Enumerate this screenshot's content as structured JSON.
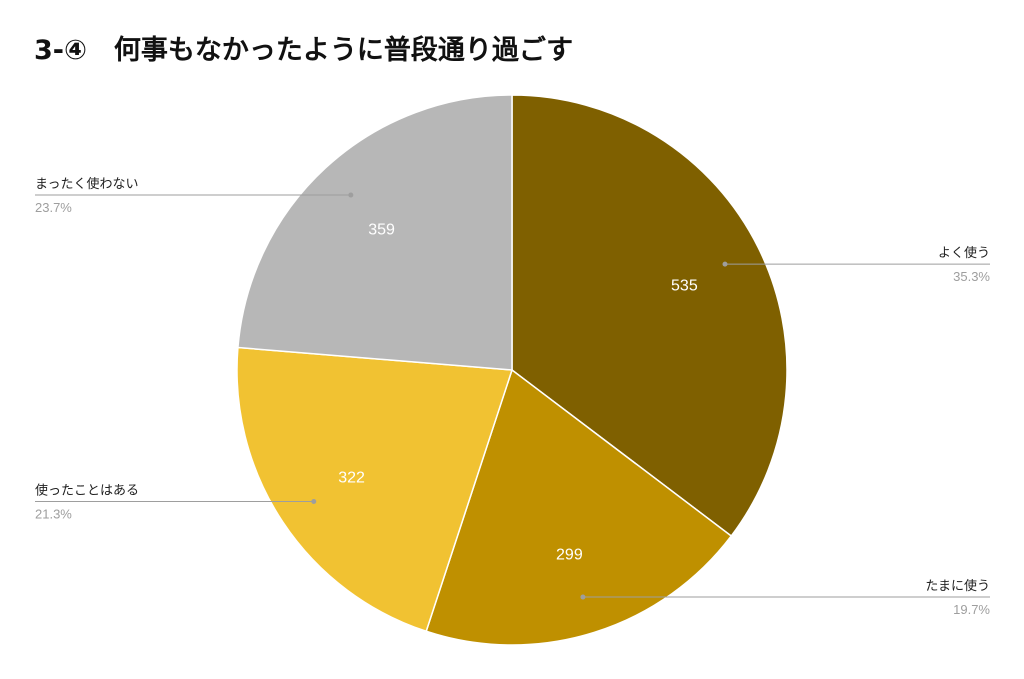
{
  "chart_data": {
    "type": "pie",
    "title": "3-④　何事もなかったように普段通り過ごす",
    "start_angle_deg": 0,
    "direction": "clockwise",
    "slices": [
      {
        "label": "よく使う",
        "value": 535,
        "percent_label": "35.3%",
        "color": "#7f6000"
      },
      {
        "label": "たまに使う",
        "value": 299,
        "percent_label": "19.7%",
        "color": "#bf9000"
      },
      {
        "label": "使ったことはある",
        "value": 322,
        "percent_label": "21.3%",
        "color": "#f1c232"
      },
      {
        "label": "まったく使わない",
        "value": 359,
        "percent_label": "23.7%",
        "color": "#b7b7b7"
      }
    ],
    "label_sides": [
      "right",
      "right",
      "left",
      "left"
    ],
    "leader_line_color": "#9e9e9e"
  }
}
